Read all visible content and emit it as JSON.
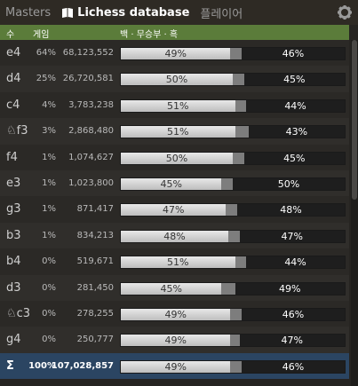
{
  "tabs": {
    "masters": "Masters",
    "lichess": "Lichess database",
    "player": "플레이어"
  },
  "header": {
    "move": "수",
    "games": "게임",
    "result": "백 · 무승부 · 흑"
  },
  "rows": [
    {
      "move": "e4",
      "pct": "64%",
      "games": "68,123,552",
      "w": 49,
      "d": 5,
      "b": 46,
      "wl": "49%",
      "bl": "46%"
    },
    {
      "move": "d4",
      "pct": "25%",
      "games": "26,720,581",
      "w": 50,
      "d": 5,
      "b": 45,
      "wl": "50%",
      "bl": "45%"
    },
    {
      "move": "c4",
      "pct": "4%",
      "games": "3,783,238",
      "w": 51,
      "d": 5,
      "b": 44,
      "wl": "51%",
      "bl": "44%"
    },
    {
      "move": "♘f3",
      "pct": "3%",
      "games": "2,868,480",
      "w": 51,
      "d": 6,
      "b": 43,
      "wl": "51%",
      "bl": "43%"
    },
    {
      "move": "f4",
      "pct": "1%",
      "games": "1,074,627",
      "w": 50,
      "d": 5,
      "b": 45,
      "wl": "50%",
      "bl": "45%"
    },
    {
      "move": "e3",
      "pct": "1%",
      "games": "1,023,800",
      "w": 45,
      "d": 5,
      "b": 50,
      "wl": "45%",
      "bl": "50%"
    },
    {
      "move": "g3",
      "pct": "1%",
      "games": "871,417",
      "w": 47,
      "d": 5,
      "b": 48,
      "wl": "47%",
      "bl": "48%"
    },
    {
      "move": "b3",
      "pct": "1%",
      "games": "834,213",
      "w": 48,
      "d": 5,
      "b": 47,
      "wl": "48%",
      "bl": "47%"
    },
    {
      "move": "b4",
      "pct": "0%",
      "games": "519,671",
      "w": 51,
      "d": 5,
      "b": 44,
      "wl": "51%",
      "bl": "44%"
    },
    {
      "move": "d3",
      "pct": "0%",
      "games": "281,450",
      "w": 45,
      "d": 6,
      "b": 49,
      "wl": "45%",
      "bl": "49%"
    },
    {
      "move": "♘c3",
      "pct": "0%",
      "games": "278,255",
      "w": 49,
      "d": 5,
      "b": 46,
      "wl": "49%",
      "bl": "46%"
    },
    {
      "move": "g4",
      "pct": "0%",
      "games": "250,777",
      "w": 49,
      "d": 4,
      "b": 47,
      "wl": "49%",
      "bl": "47%"
    }
  ],
  "total": {
    "move": "Σ",
    "pct": "100%",
    "games": "107,028,857",
    "w": 49,
    "d": 5,
    "b": 46,
    "wl": "49%",
    "bl": "46%"
  },
  "colors": {
    "header_bg": "#5b7c3a",
    "total_bg": "#2b4562",
    "accent": "#5b7c3a"
  }
}
